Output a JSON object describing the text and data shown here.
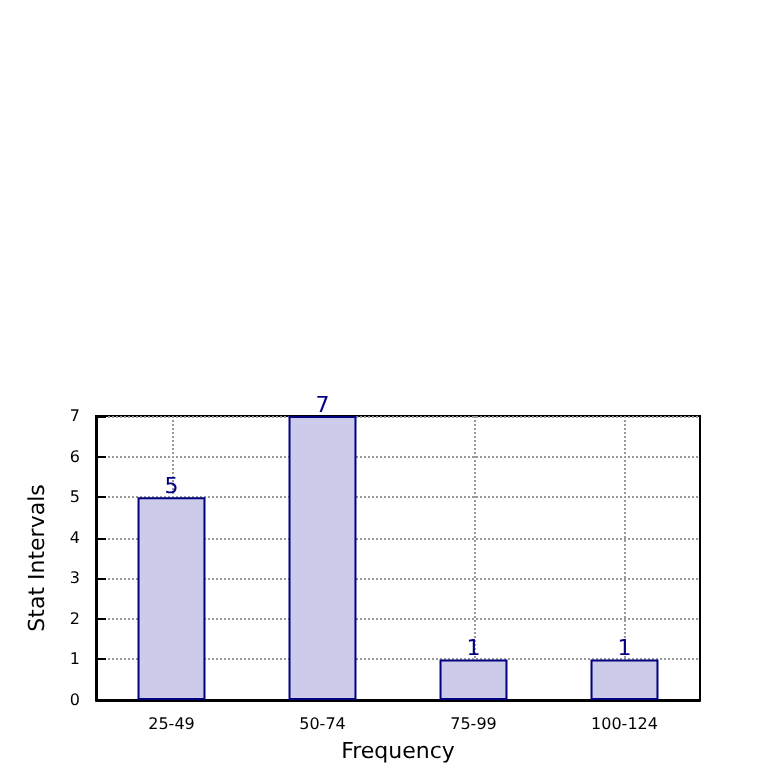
{
  "chart_data": {
    "type": "bar",
    "xlabel": "Frequency",
    "ylabel": "Stat Intervals",
    "categories": [
      "25-49",
      "50-74",
      "75-99",
      "100-124"
    ],
    "values": [
      5,
      7,
      1,
      1
    ],
    "color": "#ccccea",
    "ylim": [
      0,
      7
    ],
    "yticks": [
      0,
      1,
      2,
      3,
      4,
      5,
      6,
      7
    ],
    "grid": true,
    "data_labels": true
  }
}
